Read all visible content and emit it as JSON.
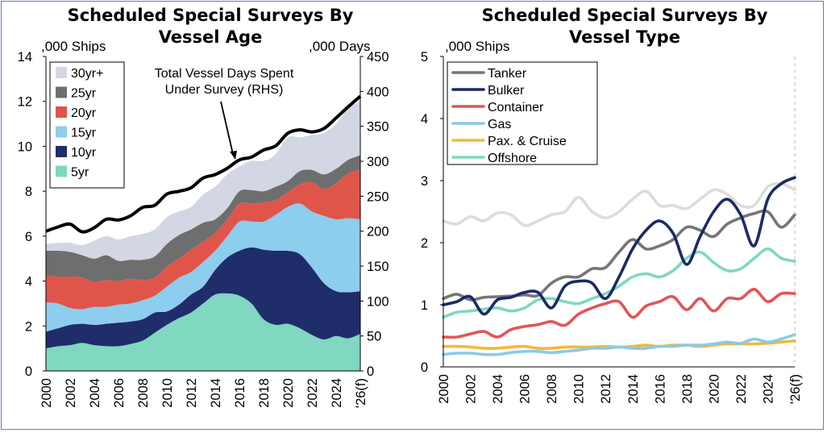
{
  "chart_data": [
    {
      "type": "area",
      "title": [
        "Scheduled Special Surveys By",
        "Vessel Age"
      ],
      "ylabel": ",000 Ships",
      "y2label": ",000 Days",
      "ylim": [
        0,
        14
      ],
      "y2lim": [
        0,
        450
      ],
      "y_ticks": [
        "0",
        "2",
        "4",
        "6",
        "8",
        "10",
        "12",
        "14"
      ],
      "y2_ticks": [
        "0",
        "50",
        "100",
        "150",
        "200",
        "250",
        "300",
        "350",
        "400",
        "450"
      ],
      "x_ticks": [
        "2000",
        "2002",
        "2004",
        "2006",
        "2008",
        "2010",
        "2012",
        "2014",
        "2016",
        "2018",
        "2020",
        "2022",
        "2024",
        "'26(f)"
      ],
      "grid": false,
      "legend_position": "top-left",
      "x": [
        2000,
        2001,
        2002,
        2003,
        2004,
        2005,
        2006,
        2007,
        2008,
        2009,
        2010,
        2011,
        2012,
        2013,
        2014,
        2015,
        2016,
        2017,
        2018,
        2019,
        2020,
        2021,
        2022,
        2023,
        2024,
        2025,
        2026
      ],
      "series": [
        {
          "name": "5yr",
          "color": "#7fd8bf",
          "values": [
            1.0,
            1.1,
            1.15,
            1.25,
            1.15,
            1.1,
            1.1,
            1.2,
            1.35,
            1.7,
            2.05,
            2.35,
            2.6,
            3.0,
            3.4,
            3.45,
            3.35,
            3.0,
            2.3,
            2.05,
            2.1,
            1.9,
            1.6,
            1.4,
            1.55,
            1.45,
            1.65
          ]
        },
        {
          "name": "10yr",
          "color": "#1f2d6b",
          "values": [
            0.75,
            0.8,
            0.9,
            0.85,
            0.9,
            1.0,
            1.05,
            1.0,
            0.95,
            0.9,
            0.6,
            0.6,
            0.8,
            0.75,
            1.1,
            1.6,
            2.0,
            2.5,
            3.1,
            3.3,
            3.25,
            3.3,
            3.0,
            2.5,
            2.0,
            2.05,
            1.9
          ]
        },
        {
          "name": "15yr",
          "color": "#8dcdee",
          "values": [
            1.3,
            1.1,
            0.75,
            0.65,
            0.8,
            0.75,
            0.8,
            0.8,
            0.85,
            0.75,
            1.1,
            1.2,
            1.0,
            1.1,
            0.85,
            0.95,
            1.3,
            1.15,
            1.25,
            1.6,
            1.95,
            2.25,
            2.5,
            3.0,
            3.2,
            3.3,
            3.2
          ]
        },
        {
          "name": "20yr",
          "color": "#e0554a",
          "values": [
            1.2,
            1.2,
            1.4,
            1.4,
            1.1,
            1.2,
            1.05,
            1.1,
            0.9,
            0.8,
            0.9,
            0.85,
            1.0,
            0.9,
            0.8,
            0.75,
            0.8,
            0.8,
            0.85,
            0.65,
            0.65,
            0.85,
            1.3,
            1.2,
            1.6,
            2.0,
            2.2
          ]
        },
        {
          "name": "25yr",
          "color": "#6e6e6e",
          "values": [
            1.1,
            1.15,
            1.1,
            1.0,
            1.05,
            1.1,
            0.9,
            0.85,
            0.9,
            0.95,
            1.0,
            1.05,
            0.9,
            0.85,
            0.6,
            0.5,
            0.55,
            0.6,
            0.5,
            0.6,
            0.5,
            0.6,
            0.55,
            0.65,
            0.65,
            0.6,
            0.65
          ]
        },
        {
          "name": "30yr+",
          "color": "#d3d6e3",
          "values": [
            0.3,
            0.35,
            0.4,
            0.45,
            0.8,
            0.85,
            0.95,
            1.05,
            1.15,
            1.2,
            1.2,
            1.05,
            1.0,
            1.25,
            1.45,
            1.5,
            1.1,
            1.3,
            1.35,
            1.45,
            1.95,
            1.5,
            1.55,
            1.85,
            2.0,
            2.3,
            2.4
          ]
        }
      ],
      "line_series": {
        "name": "Total Vessel Days Spent Under Survey (RHS)",
        "axis": "right",
        "color": "#000000",
        "values": [
          200,
          206,
          210,
          199,
          205,
          217,
          216,
          222,
          234,
          237,
          253,
          257,
          262,
          276,
          281,
          290,
          302,
          306,
          316,
          322,
          340,
          345,
          342,
          347,
          362,
          378,
          393
        ]
      },
      "annotation": [
        "Total Vessel Days Spent",
        "Under Survey (RHS)"
      ]
    },
    {
      "type": "line",
      "title": [
        "Scheduled Special Surveys By",
        "Vessel Type"
      ],
      "ylabel": ",000 Ships",
      "ylim": [
        0,
        5
      ],
      "y_ticks": [
        "0",
        "1",
        "2",
        "3",
        "4",
        "5"
      ],
      "x_ticks": [
        "2000",
        "2002",
        "2004",
        "2006",
        "2008",
        "2010",
        "2012",
        "2014",
        "2016",
        "2018",
        "2020",
        "2022",
        "2024",
        "'26(f)"
      ],
      "grid": false,
      "legend_position": "top-left",
      "x": [
        2000,
        2001,
        2002,
        2003,
        2004,
        2005,
        2006,
        2007,
        2008,
        2009,
        2010,
        2011,
        2012,
        2013,
        2014,
        2015,
        2016,
        2017,
        2018,
        2019,
        2020,
        2021,
        2022,
        2023,
        2024,
        2025,
        2026
      ],
      "series": [
        {
          "name": "Tanker",
          "color": "#767676",
          "values": [
            1.1,
            1.17,
            1.08,
            1.12,
            1.13,
            1.14,
            1.16,
            1.15,
            1.35,
            1.45,
            1.45,
            1.58,
            1.6,
            1.85,
            2.05,
            1.9,
            1.95,
            2.05,
            2.25,
            2.2,
            2.1,
            2.3,
            2.4,
            2.47,
            2.5,
            2.25,
            2.45
          ]
        },
        {
          "name": "Bulker",
          "color": "#1b2a66",
          "values": [
            1.0,
            1.05,
            1.13,
            0.85,
            1.08,
            1.12,
            1.2,
            1.2,
            0.95,
            1.3,
            1.38,
            1.35,
            1.1,
            1.45,
            1.9,
            2.2,
            2.35,
            2.15,
            1.65,
            2.1,
            2.5,
            2.7,
            2.45,
            1.95,
            2.7,
            2.95,
            3.05
          ]
        },
        {
          "name": "Container",
          "color": "#e05757",
          "values": [
            0.48,
            0.48,
            0.53,
            0.57,
            0.48,
            0.6,
            0.65,
            0.68,
            0.73,
            0.67,
            0.85,
            0.95,
            1.02,
            1.05,
            0.8,
            0.98,
            1.05,
            1.13,
            0.92,
            1.1,
            0.9,
            1.1,
            1.1,
            1.25,
            1.05,
            1.18,
            1.18
          ]
        },
        {
          "name": "Gas",
          "color": "#8cc9ea",
          "values": [
            0.2,
            0.22,
            0.22,
            0.2,
            0.2,
            0.23,
            0.25,
            0.25,
            0.23,
            0.25,
            0.27,
            0.3,
            0.3,
            0.32,
            0.3,
            0.3,
            0.33,
            0.33,
            0.35,
            0.35,
            0.37,
            0.4,
            0.38,
            0.45,
            0.4,
            0.45,
            0.52
          ]
        },
        {
          "name": "Pax. & Cruise",
          "color": "#f2b93a",
          "values": [
            0.33,
            0.33,
            0.32,
            0.3,
            0.3,
            0.32,
            0.33,
            0.3,
            0.3,
            0.32,
            0.32,
            0.32,
            0.33,
            0.32,
            0.33,
            0.35,
            0.33,
            0.35,
            0.35,
            0.33,
            0.35,
            0.37,
            0.37,
            0.37,
            0.38,
            0.4,
            0.42
          ]
        },
        {
          "name": "Offshore",
          "color": "#7fd8bf",
          "values": [
            0.8,
            0.88,
            0.9,
            0.93,
            0.95,
            0.9,
            0.95,
            1.08,
            1.1,
            1.05,
            1.02,
            1.1,
            1.18,
            1.3,
            1.45,
            1.5,
            1.45,
            1.55,
            1.75,
            1.85,
            1.68,
            1.55,
            1.58,
            1.75,
            1.9,
            1.75,
            1.7
          ]
        },
        {
          "color": "#dcdcdc",
          "values": [
            2.35,
            2.3,
            2.42,
            2.35,
            2.48,
            2.45,
            2.28,
            2.35,
            2.45,
            2.5,
            2.73,
            2.5,
            2.4,
            2.5,
            2.7,
            2.83,
            2.6,
            2.6,
            2.55,
            2.7,
            2.85,
            2.78,
            2.6,
            2.6,
            2.9,
            2.95,
            2.85
          ]
        }
      ]
    }
  ]
}
